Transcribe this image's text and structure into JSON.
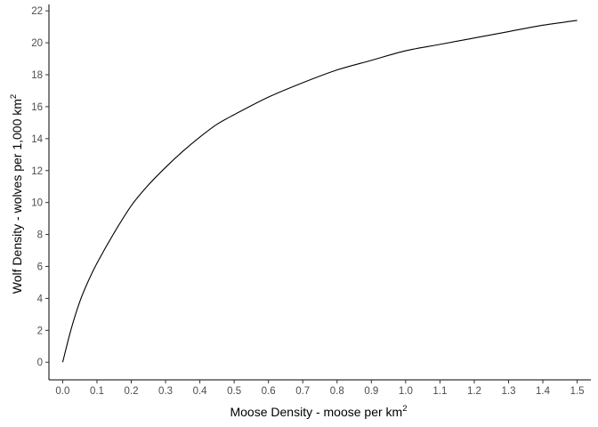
{
  "chart_data": {
    "type": "line",
    "title": "",
    "xlabel": "Moose Density - moose per km",
    "xlabel_superscript": "2",
    "ylabel": "Wolf Density - wolves per 1,000 km",
    "ylabel_superscript": "2",
    "xlim": [
      -0.04,
      1.54
    ],
    "ylim": [
      -1.1,
      22.4
    ],
    "x_ticks": [
      0.0,
      0.1,
      0.2,
      0.3,
      0.4,
      0.5,
      0.6,
      0.7,
      0.8,
      0.9,
      1.0,
      1.1,
      1.2,
      1.3,
      1.4,
      1.5
    ],
    "x_tick_labels": [
      "0.0",
      "0.1",
      "0.2",
      "0.3",
      "0.4",
      "0.5",
      "0.6",
      "0.7",
      "0.8",
      "0.9",
      "1.0",
      "1.1",
      "1.2",
      "1.3",
      "1.4",
      "1.5"
    ],
    "y_ticks": [
      0,
      2,
      4,
      6,
      8,
      10,
      12,
      14,
      16,
      18,
      20,
      22
    ],
    "y_tick_labels": [
      "0",
      "2",
      "4",
      "6",
      "8",
      "10",
      "12",
      "14",
      "16",
      "18",
      "20",
      "22"
    ],
    "grid": false,
    "line_color": "#000000",
    "axis_color": "#000000",
    "tick_label_color": "#4d4d4d",
    "series": [
      {
        "x": [
          0.0,
          0.025,
          0.05,
          0.075,
          0.1,
          0.15,
          0.2,
          0.25,
          0.3,
          0.35,
          0.4,
          0.45,
          0.5,
          0.6,
          0.7,
          0.8,
          0.9,
          1.0,
          1.1,
          1.2,
          1.3,
          1.4,
          1.5
        ],
        "y": [
          0.0,
          2.1,
          3.8,
          5.1,
          6.2,
          8.1,
          9.8,
          11.1,
          12.2,
          13.2,
          14.1,
          14.9,
          15.5,
          16.6,
          17.5,
          18.3,
          18.9,
          19.5,
          19.9,
          20.3,
          20.7,
          21.1,
          21.4
        ]
      }
    ]
  }
}
